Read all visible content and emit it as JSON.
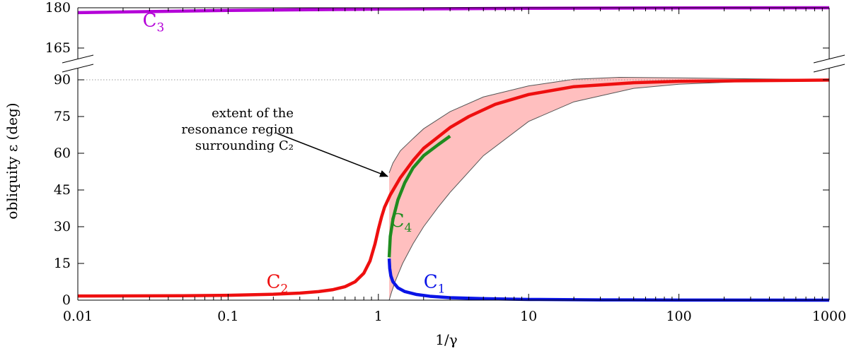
{
  "chart_data": {
    "type": "line",
    "title": "",
    "xlabel": "1/γ",
    "ylabel": "obliquity ε (deg)",
    "xscale": "log",
    "xlim": [
      0.01,
      1000
    ],
    "x_ticks": [
      0.01,
      0.1,
      1,
      10,
      100,
      1000
    ],
    "x_tick_labels": [
      "0.01",
      "0.1",
      "1",
      "10",
      "100",
      "1000"
    ],
    "y_broken_axis": true,
    "y_ranges": [
      [
        0,
        90
      ],
      [
        165,
        180
      ]
    ],
    "y_ticks": [
      0,
      15,
      30,
      45,
      60,
      75,
      90,
      165,
      180
    ],
    "y_tick_labels": [
      "0",
      "15",
      "30",
      "45",
      "60",
      "75",
      "90",
      "165",
      "180"
    ],
    "reference_line": {
      "y": 90,
      "style": "dotted"
    },
    "series": [
      {
        "name": "C1",
        "label_main": "C",
        "label_sub": "1",
        "color": "#0a14e6",
        "label_at": {
          "x": 2.0,
          "y": 5
        },
        "points": [
          [
            1.18,
            17
          ],
          [
            1.19,
            13
          ],
          [
            1.21,
            10
          ],
          [
            1.25,
            7.5
          ],
          [
            1.35,
            5
          ],
          [
            1.5,
            3.5
          ],
          [
            1.8,
            2.3
          ],
          [
            2.2,
            1.6
          ],
          [
            3,
            1.0
          ],
          [
            5,
            0.6
          ],
          [
            10,
            0.3
          ],
          [
            30,
            0.12
          ],
          [
            100,
            0.05
          ],
          [
            1000,
            0.01
          ]
        ]
      },
      {
        "name": "C2",
        "label_main": "C",
        "label_sub": "2",
        "color": "#ee0f0f",
        "label_at": {
          "x": 0.18,
          "y": 5
        },
        "points": [
          [
            0.01,
            1.7
          ],
          [
            0.05,
            1.8
          ],
          [
            0.1,
            2.0
          ],
          [
            0.2,
            2.4
          ],
          [
            0.3,
            2.9
          ],
          [
            0.4,
            3.5
          ],
          [
            0.5,
            4.3
          ],
          [
            0.6,
            5.5
          ],
          [
            0.7,
            7.5
          ],
          [
            0.8,
            11
          ],
          [
            0.88,
            16
          ],
          [
            0.95,
            23
          ],
          [
            1.0,
            29
          ],
          [
            1.05,
            34
          ],
          [
            1.1,
            38
          ],
          [
            1.2,
            43
          ],
          [
            1.4,
            50
          ],
          [
            1.7,
            57
          ],
          [
            2,
            62
          ],
          [
            3,
            70.5
          ],
          [
            4,
            75
          ],
          [
            6,
            80
          ],
          [
            10,
            84
          ],
          [
            20,
            87.2
          ],
          [
            50,
            88.8
          ],
          [
            100,
            89.4
          ],
          [
            1000,
            89.9
          ]
        ]
      },
      {
        "name": "C3",
        "label_main": "C",
        "label_sub": "3",
        "color": "#b400d8",
        "label_at": {
          "x": 0.027,
          "y": 173
        },
        "points": [
          [
            0.01,
            178.2
          ],
          [
            0.1,
            179.0
          ],
          [
            1,
            179.5
          ],
          [
            10,
            179.8
          ],
          [
            100,
            179.95
          ],
          [
            1000,
            180
          ]
        ]
      },
      {
        "name": "C4",
        "label_main": "C",
        "label_sub": "4",
        "color": "#1f8c1f",
        "label_at": {
          "x": 1.2,
          "y": 30
        },
        "points": [
          [
            1.18,
            17.5
          ],
          [
            1.2,
            26
          ],
          [
            1.25,
            33
          ],
          [
            1.35,
            41
          ],
          [
            1.5,
            48
          ],
          [
            1.7,
            54
          ],
          [
            2,
            59
          ],
          [
            2.5,
            63.5
          ],
          [
            3,
            67
          ]
        ]
      }
    ],
    "shaded_region": {
      "name": "resonance region surrounding C2",
      "color": "#ffbfbf",
      "upper": [
        [
          1.18,
          52
        ],
        [
          1.25,
          56
        ],
        [
          1.4,
          61
        ],
        [
          1.7,
          66
        ],
        [
          2,
          70
        ],
        [
          3,
          77
        ],
        [
          5,
          83
        ],
        [
          10,
          87.5
        ],
        [
          20,
          90.2
        ],
        [
          40,
          91
        ],
        [
          100,
          90.8
        ],
        [
          300,
          90.4
        ],
        [
          1000,
          90.1
        ]
      ],
      "lower": [
        [
          1.18,
          0
        ],
        [
          1.22,
          3
        ],
        [
          1.3,
          8
        ],
        [
          1.45,
          15
        ],
        [
          1.7,
          23
        ],
        [
          2,
          30
        ],
        [
          2.5,
          38
        ],
        [
          3,
          44
        ],
        [
          5,
          59
        ],
        [
          10,
          73
        ],
        [
          20,
          81
        ],
        [
          50,
          86.5
        ],
        [
          100,
          88.2
        ],
        [
          300,
          89.4
        ],
        [
          1000,
          89.8
        ]
      ]
    },
    "annotations": [
      {
        "text_lines": [
          "extent of the",
          "resonance region",
          "surrounding C₂"
        ],
        "arrow_to": {
          "x": 1.18,
          "y": 54
        }
      }
    ]
  }
}
